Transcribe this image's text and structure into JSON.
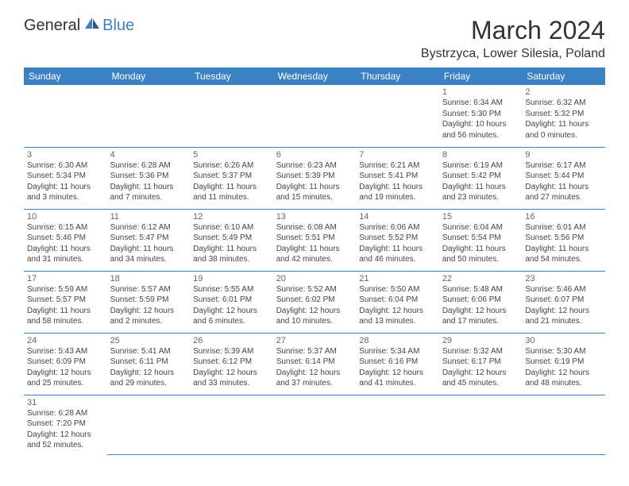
{
  "logo": {
    "text1": "General",
    "text2": "Blue",
    "color_blue": "#3b82c4"
  },
  "header": {
    "title": "March 2024",
    "location": "Bystrzyca, Lower Silesia, Poland"
  },
  "weekdays": [
    "Sunday",
    "Monday",
    "Tuesday",
    "Wednesday",
    "Thursday",
    "Friday",
    "Saturday"
  ],
  "colors": {
    "header_bg": "#3b82c4",
    "header_text": "#ffffff",
    "border": "#3b82c4",
    "text": "#444444"
  },
  "days": {
    "d1": {
      "n": "1",
      "sunrise": "6:34 AM",
      "sunset": "5:30 PM",
      "dh": "10",
      "dm": "56"
    },
    "d2": {
      "n": "2",
      "sunrise": "6:32 AM",
      "sunset": "5:32 PM",
      "dh": "11",
      "dm": "0"
    },
    "d3": {
      "n": "3",
      "sunrise": "6:30 AM",
      "sunset": "5:34 PM",
      "dh": "11",
      "dm": "3"
    },
    "d4": {
      "n": "4",
      "sunrise": "6:28 AM",
      "sunset": "5:36 PM",
      "dh": "11",
      "dm": "7"
    },
    "d5": {
      "n": "5",
      "sunrise": "6:26 AM",
      "sunset": "5:37 PM",
      "dh": "11",
      "dm": "11"
    },
    "d6": {
      "n": "6",
      "sunrise": "6:23 AM",
      "sunset": "5:39 PM",
      "dh": "11",
      "dm": "15"
    },
    "d7": {
      "n": "7",
      "sunrise": "6:21 AM",
      "sunset": "5:41 PM",
      "dh": "11",
      "dm": "19"
    },
    "d8": {
      "n": "8",
      "sunrise": "6:19 AM",
      "sunset": "5:42 PM",
      "dh": "11",
      "dm": "23"
    },
    "d9": {
      "n": "9",
      "sunrise": "6:17 AM",
      "sunset": "5:44 PM",
      "dh": "11",
      "dm": "27"
    },
    "d10": {
      "n": "10",
      "sunrise": "6:15 AM",
      "sunset": "5:46 PM",
      "dh": "11",
      "dm": "31"
    },
    "d11": {
      "n": "11",
      "sunrise": "6:12 AM",
      "sunset": "5:47 PM",
      "dh": "11",
      "dm": "34"
    },
    "d12": {
      "n": "12",
      "sunrise": "6:10 AM",
      "sunset": "5:49 PM",
      "dh": "11",
      "dm": "38"
    },
    "d13": {
      "n": "13",
      "sunrise": "6:08 AM",
      "sunset": "5:51 PM",
      "dh": "11",
      "dm": "42"
    },
    "d14": {
      "n": "14",
      "sunrise": "6:06 AM",
      "sunset": "5:52 PM",
      "dh": "11",
      "dm": "46"
    },
    "d15": {
      "n": "15",
      "sunrise": "6:04 AM",
      "sunset": "5:54 PM",
      "dh": "11",
      "dm": "50"
    },
    "d16": {
      "n": "16",
      "sunrise": "6:01 AM",
      "sunset": "5:56 PM",
      "dh": "11",
      "dm": "54"
    },
    "d17": {
      "n": "17",
      "sunrise": "5:59 AM",
      "sunset": "5:57 PM",
      "dh": "11",
      "dm": "58"
    },
    "d18": {
      "n": "18",
      "sunrise": "5:57 AM",
      "sunset": "5:59 PM",
      "dh": "12",
      "dm": "2"
    },
    "d19": {
      "n": "19",
      "sunrise": "5:55 AM",
      "sunset": "6:01 PM",
      "dh": "12",
      "dm": "6"
    },
    "d20": {
      "n": "20",
      "sunrise": "5:52 AM",
      "sunset": "6:02 PM",
      "dh": "12",
      "dm": "10"
    },
    "d21": {
      "n": "21",
      "sunrise": "5:50 AM",
      "sunset": "6:04 PM",
      "dh": "12",
      "dm": "13"
    },
    "d22": {
      "n": "22",
      "sunrise": "5:48 AM",
      "sunset": "6:06 PM",
      "dh": "12",
      "dm": "17"
    },
    "d23": {
      "n": "23",
      "sunrise": "5:46 AM",
      "sunset": "6:07 PM",
      "dh": "12",
      "dm": "21"
    },
    "d24": {
      "n": "24",
      "sunrise": "5:43 AM",
      "sunset": "6:09 PM",
      "dh": "12",
      "dm": "25"
    },
    "d25": {
      "n": "25",
      "sunrise": "5:41 AM",
      "sunset": "6:11 PM",
      "dh": "12",
      "dm": "29"
    },
    "d26": {
      "n": "26",
      "sunrise": "5:39 AM",
      "sunset": "6:12 PM",
      "dh": "12",
      "dm": "33"
    },
    "d27": {
      "n": "27",
      "sunrise": "5:37 AM",
      "sunset": "6:14 PM",
      "dh": "12",
      "dm": "37"
    },
    "d28": {
      "n": "28",
      "sunrise": "5:34 AM",
      "sunset": "6:16 PM",
      "dh": "12",
      "dm": "41"
    },
    "d29": {
      "n": "29",
      "sunrise": "5:32 AM",
      "sunset": "6:17 PM",
      "dh": "12",
      "dm": "45"
    },
    "d30": {
      "n": "30",
      "sunrise": "5:30 AM",
      "sunset": "6:19 PM",
      "dh": "12",
      "dm": "48"
    },
    "d31": {
      "n": "31",
      "sunrise": "6:28 AM",
      "sunset": "7:20 PM",
      "dh": "12",
      "dm": "52"
    }
  },
  "labels": {
    "sunrise": "Sunrise:",
    "sunset": "Sunset:",
    "daylight": "Daylight:",
    "hours": "hours",
    "and": "and",
    "minutes": "minutes."
  }
}
